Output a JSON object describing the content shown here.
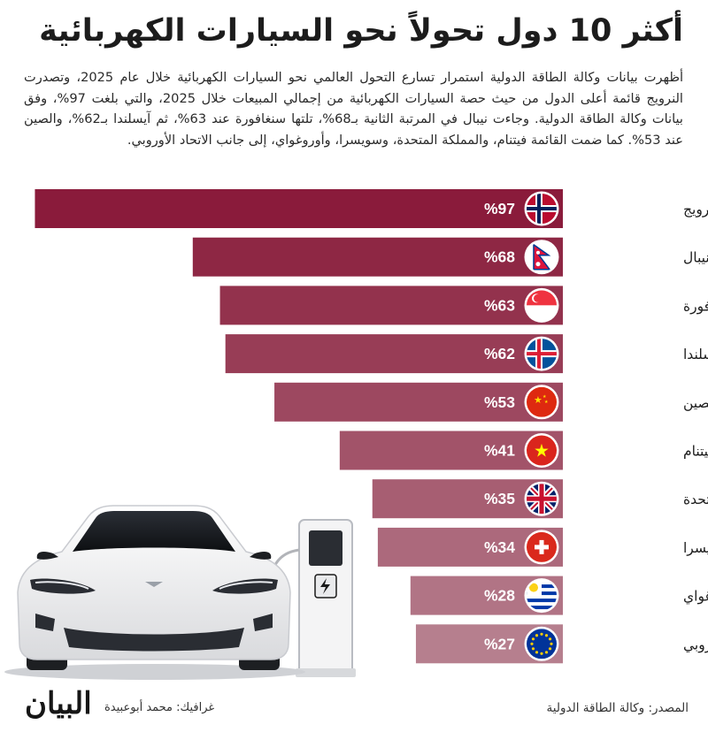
{
  "header": {
    "title": "أكثر 10 دول تحولاً نحو السيارات الكهربائية",
    "intro": "أظهرت بيانات وكالة الطاقة الدولية استمرار تسارع التحول العالمي نحو السيارات الكهربائية خلال عام 2025، وتصدرت النرويج قائمة أعلى الدول من حيث حصة السيارات الكهربائية من إجمالي المبيعات خلال 2025، والتي بلغت 97%، وفق بيانات وكالة الطاقة الدولية. وجاءت نيبال في المرتبة الثانية بـ68%، تلتها سنغافورة عند 63%، ثم آيسلندا بـ62%، والصين عند 53%. كما ضمت القائمة فيتنام، والمملكة المتحدة، وسويسرا، وأوروغواي، إلى جانب الاتحاد الأوروبي."
  },
  "chart_data": {
    "type": "bar",
    "orientation": "horizontal",
    "categories": [
      "النرويج",
      "نيبال",
      "سنغافورة",
      "آيسلندا",
      "الصين",
      "فيتنام",
      "المملكة المتحدة",
      "سويسرا",
      "أوروغواي",
      "الاتحاد الأوروبي"
    ],
    "values": [
      97,
      68,
      63,
      62,
      53,
      41,
      35,
      34,
      28,
      27
    ],
    "labels": [
      "%97",
      "%68",
      "%63",
      "%62",
      "%53",
      "%41",
      "%35",
      "%34",
      "%28",
      "%27"
    ],
    "flag_icons": [
      "norway-flag-icon",
      "nepal-flag-icon",
      "singapore-flag-icon",
      "iceland-flag-icon",
      "china-flag-icon",
      "vietnam-flag-icon",
      "uk-flag-icon",
      "switzerland-flag-icon",
      "uruguay-flag-icon",
      "eu-flag-icon"
    ],
    "colors": [
      "#8a1b3b",
      "#8e2744",
      "#93324d",
      "#983d56",
      "#9d4860",
      "#a25369",
      "#a75e72",
      "#ac697c",
      "#b17485",
      "#b67f8e"
    ],
    "xlim": [
      0,
      100
    ],
    "grid": false,
    "legend": "none"
  },
  "footer": {
    "source": "المصدر: وكالة الطاقة الدولية",
    "credit": "غرافيك: محمد أبوعبيدة",
    "logo": "البيان"
  }
}
